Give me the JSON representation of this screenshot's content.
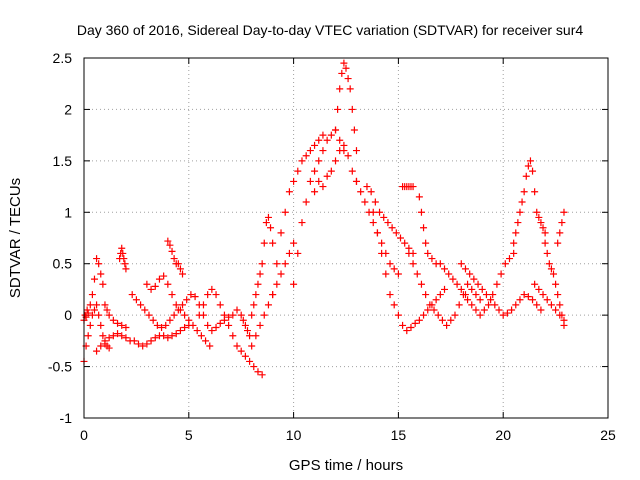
{
  "chart_data": {
    "type": "scatter",
    "title": "Day 360 of 2016, Sidereal Day-to-day VTEC variation (SDTVAR) for receiver sur4",
    "xlabel": "GPS time / hours",
    "ylabel": "SDTVAR / TECUs",
    "xlim": [
      0,
      25
    ],
    "ylim": [
      -1,
      2.5
    ],
    "xticks": [
      "0",
      "5",
      "10",
      "15",
      "20",
      "25"
    ],
    "yticks": [
      "-1",
      "-0.5",
      "0",
      "0.5",
      "1",
      "1.5",
      "2",
      "2.5"
    ],
    "grid": true,
    "marker": "plus",
    "series": [
      {
        "name": "SDTVAR",
        "color": "#ff0000",
        "x": [
          0.0,
          0.05,
          0.1,
          0.15,
          0.2,
          0.3,
          0.4,
          0.5,
          0.6,
          0.7,
          0.8,
          0.9,
          1.0,
          1.1,
          1.2,
          1.4,
          1.6,
          1.8,
          2.0,
          0.0,
          0.1,
          0.2,
          0.3,
          0.4,
          0.5,
          0.6,
          0.7,
          0.8,
          0.9,
          1.0,
          1.1,
          1.2,
          0.6,
          0.8,
          1.0,
          1.2,
          1.4,
          1.6,
          1.8,
          2.0,
          2.2,
          2.4,
          2.6,
          2.8,
          3.0,
          3.2,
          3.4,
          3.6,
          3.8,
          4.0,
          4.2,
          4.4,
          4.6,
          4.8,
          5.0,
          1.7,
          1.75,
          1.8,
          1.85,
          1.9,
          1.95,
          2.0,
          3.0,
          3.2,
          3.4,
          3.6,
          3.8,
          4.0,
          4.2,
          4.4,
          4.6,
          4.8,
          5.0,
          5.2,
          5.4,
          5.6,
          5.8,
          6.0,
          2.3,
          2.5,
          2.7,
          2.9,
          3.1,
          3.3,
          3.5,
          3.7,
          3.9,
          4.1,
          4.3,
          4.5,
          4.7,
          4.9,
          5.1,
          5.3,
          5.5,
          5.7,
          5.9,
          6.1,
          6.3,
          6.5,
          6.7,
          6.9,
          7.1,
          7.3,
          4.0,
          4.1,
          4.2,
          4.3,
          4.4,
          4.5,
          4.6,
          4.7,
          5.5,
          5.7,
          5.9,
          6.1,
          6.3,
          6.5,
          6.7,
          6.9,
          7.1,
          7.3,
          7.5,
          7.7,
          7.9,
          8.1,
          8.3,
          8.5,
          7.5,
          7.6,
          7.7,
          7.8,
          7.9,
          8.0,
          8.1,
          8.2,
          8.3,
          8.4,
          8.5,
          8.6,
          8.7,
          8.8,
          8.9,
          9.0,
          8.0,
          8.2,
          8.4,
          8.6,
          8.8,
          9.0,
          9.2,
          9.4,
          9.6,
          9.8,
          10.0,
          9.0,
          9.2,
          9.4,
          9.6,
          9.8,
          10.0,
          10.2,
          10.4,
          10.6,
          10.8,
          11.0,
          11.2,
          11.4,
          10.0,
          10.2,
          10.4,
          10.6,
          10.8,
          11.0,
          11.2,
          11.4,
          11.6,
          11.8,
          12.0,
          12.2,
          12.4,
          11.0,
          11.2,
          11.4,
          11.6,
          11.8,
          12.0,
          12.2,
          12.4,
          12.6,
          12.8,
          13.0,
          12.0,
          12.1,
          12.2,
          12.3,
          12.4,
          12.5,
          12.6,
          12.7,
          12.8,
          12.9,
          13.0,
          13.0,
          13.2,
          13.4,
          13.6,
          13.8,
          14.0,
          14.2,
          14.4,
          14.6,
          14.8,
          15.0,
          13.5,
          13.7,
          13.9,
          14.1,
          14.3,
          14.5,
          14.7,
          14.9,
          15.1,
          15.3,
          15.5,
          15.7,
          13.8,
          14.0,
          14.2,
          14.4,
          14.6,
          14.8,
          15.0,
          15.2,
          15.4,
          15.6,
          15.8,
          16.0,
          16.2,
          16.4,
          16.6,
          16.8,
          17.0,
          17.2,
          15.5,
          15.7,
          15.9,
          16.1,
          16.3,
          16.5,
          16.7,
          16.9,
          17.1,
          17.3,
          17.5,
          17.7,
          17.9,
          18.1,
          18.3,
          18.5,
          18.7,
          18.9,
          15.2,
          15.3,
          15.4,
          15.5,
          15.6,
          15.7,
          16.0,
          16.1,
          16.2,
          16.3,
          16.4,
          16.6,
          16.8,
          17.0,
          17.2,
          17.4,
          17.6,
          17.8,
          18.0,
          18.2,
          18.3,
          18.5,
          18.7,
          18.9,
          19.1,
          19.3,
          19.5,
          19.7,
          19.9,
          20.1,
          20.3,
          20.5,
          18.0,
          18.2,
          18.4,
          18.6,
          18.8,
          19.0,
          19.2,
          19.4,
          19.6,
          19.8,
          20.0,
          20.2,
          20.4,
          20.6,
          20.8,
          21.0,
          21.2,
          21.4,
          21.6,
          21.8,
          20.5,
          20.6,
          20.7,
          20.8,
          20.9,
          21.0,
          21.1,
          21.2,
          21.3,
          21.4,
          21.5,
          21.6,
          21.7,
          21.8,
          21.9,
          22.0,
          21.5,
          21.7,
          21.9,
          22.1,
          22.3,
          22.5,
          22.7,
          22.9,
          22.0,
          22.1,
          22.2,
          22.3,
          22.4,
          22.5,
          22.6,
          22.7,
          22.8,
          22.9,
          22.9,
          22.8,
          22.7,
          22.6
        ],
        "y": [
          -0.05,
          0.0,
          -0.02,
          0.05,
          0.02,
          0.1,
          0.2,
          0.35,
          0.55,
          0.5,
          0.4,
          0.3,
          0.1,
          0.05,
          0.0,
          -0.05,
          -0.08,
          -0.1,
          -0.12,
          -0.45,
          -0.3,
          -0.2,
          -0.1,
          0.0,
          0.05,
          0.1,
          0.0,
          -0.1,
          -0.2,
          -0.28,
          -0.3,
          -0.32,
          -0.35,
          -0.3,
          -0.25,
          -0.22,
          -0.2,
          -0.18,
          -0.2,
          -0.22,
          -0.25,
          -0.25,
          -0.28,
          -0.3,
          -0.28,
          -0.25,
          -0.22,
          -0.2,
          -0.2,
          -0.22,
          -0.2,
          -0.18,
          -0.15,
          -0.12,
          -0.1,
          0.55,
          0.6,
          0.65,
          0.6,
          0.55,
          0.5,
          0.45,
          0.3,
          0.25,
          0.28,
          0.35,
          0.38,
          0.3,
          0.2,
          0.1,
          0.05,
          0.0,
          -0.05,
          -0.1,
          -0.15,
          -0.2,
          -0.25,
          -0.3,
          0.2,
          0.15,
          0.1,
          0.05,
          0.0,
          -0.05,
          -0.1,
          -0.12,
          -0.1,
          -0.05,
          0.0,
          0.05,
          0.1,
          0.15,
          0.2,
          0.18,
          0.1,
          0.0,
          -0.1,
          -0.15,
          -0.12,
          -0.08,
          -0.05,
          -0.02,
          0.0,
          0.05,
          0.72,
          0.68,
          0.62,
          0.55,
          0.5,
          0.5,
          0.45,
          0.4,
          0.0,
          0.1,
          0.2,
          0.25,
          0.2,
          0.1,
          0.0,
          -0.1,
          -0.2,
          -0.3,
          -0.35,
          -0.4,
          -0.45,
          -0.5,
          -0.55,
          -0.58,
          0.0,
          -0.05,
          -0.1,
          -0.15,
          -0.2,
          0.0,
          0.1,
          0.2,
          0.3,
          0.4,
          0.5,
          0.7,
          0.9,
          0.95,
          0.85,
          0.7,
          -0.3,
          -0.2,
          -0.1,
          0.0,
          0.1,
          0.2,
          0.3,
          0.4,
          0.5,
          0.6,
          0.7,
          0.2,
          0.5,
          0.8,
          1.0,
          1.2,
          1.3,
          1.4,
          1.5,
          1.55,
          1.6,
          1.65,
          1.7,
          1.75,
          0.3,
          0.6,
          0.9,
          1.1,
          1.3,
          1.4,
          1.5,
          1.6,
          1.7,
          1.75,
          1.8,
          1.7,
          1.6,
          1.2,
          1.3,
          1.25,
          1.35,
          1.4,
          1.5,
          1.6,
          1.65,
          1.55,
          1.4,
          1.3,
          1.8,
          2.0,
          2.2,
          2.35,
          2.45,
          2.4,
          2.3,
          2.2,
          2.0,
          1.8,
          1.6,
          1.3,
          1.2,
          1.1,
          1.0,
          0.9,
          0.8,
          0.7,
          0.6,
          0.5,
          0.45,
          0.4,
          1.25,
          1.2,
          1.1,
          1.0,
          0.95,
          0.9,
          0.85,
          0.8,
          0.75,
          0.7,
          0.65,
          0.6,
          1.0,
          0.8,
          0.6,
          0.4,
          0.2,
          0.1,
          0.0,
          -0.1,
          -0.15,
          -0.12,
          -0.08,
          -0.05,
          0.0,
          0.05,
          0.1,
          0.15,
          0.2,
          0.25,
          0.6,
          0.5,
          0.4,
          0.3,
          0.2,
          0.1,
          0.05,
          0.0,
          -0.05,
          -0.1,
          -0.05,
          0.0,
          0.1,
          0.2,
          0.3,
          0.25,
          0.2,
          0.15,
          1.25,
          1.25,
          1.25,
          1.25,
          1.25,
          1.25,
          1.15,
          1.0,
          0.85,
          0.7,
          0.6,
          0.55,
          0.5,
          0.5,
          0.45,
          0.4,
          0.35,
          0.3,
          0.25,
          0.2,
          0.15,
          0.1,
          0.05,
          0.0,
          0.05,
          0.1,
          0.2,
          0.3,
          0.4,
          0.5,
          0.55,
          0.6,
          0.5,
          0.45,
          0.4,
          0.35,
          0.3,
          0.25,
          0.2,
          0.15,
          0.1,
          0.05,
          0.0,
          0.02,
          0.05,
          0.1,
          0.15,
          0.2,
          0.18,
          0.15,
          0.1,
          0.05,
          0.7,
          0.8,
          0.9,
          1.0,
          1.1,
          1.2,
          1.35,
          1.45,
          1.5,
          1.4,
          1.2,
          1.0,
          0.95,
          0.9,
          0.85,
          0.8,
          0.3,
          0.25,
          0.2,
          0.15,
          0.1,
          0.05,
          0.0,
          -0.05,
          0.7,
          0.6,
          0.5,
          0.45,
          0.4,
          0.3,
          0.2,
          0.1,
          0.0,
          -0.1,
          1.0,
          0.9,
          0.8,
          0.7
        ]
      }
    ]
  }
}
